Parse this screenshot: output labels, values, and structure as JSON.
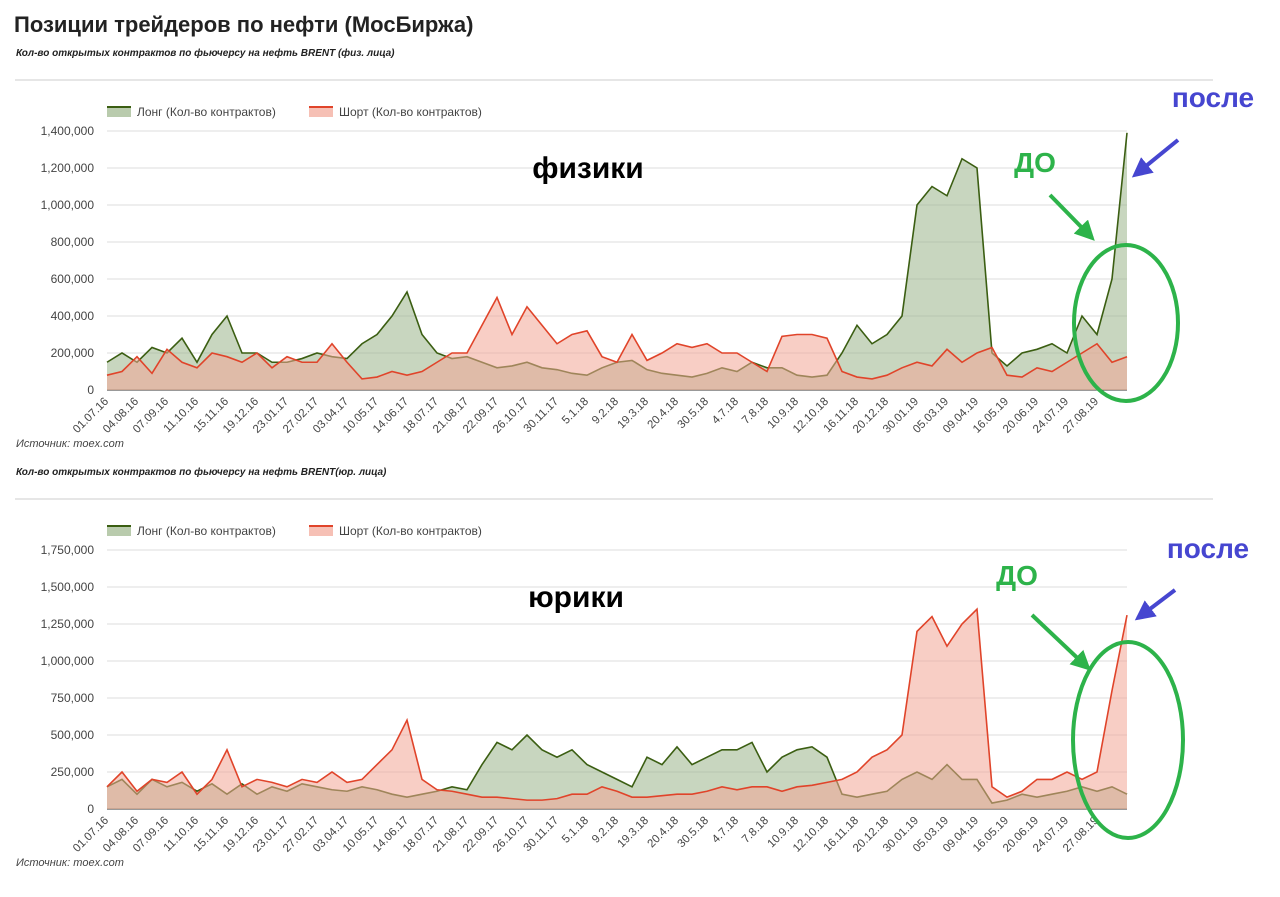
{
  "title": "Позиции трейдеров по нефти (МосБиржа)",
  "chart_data": [
    {
      "type": "area",
      "subtitle": "Кол-во открытых контрактов по фьючерсу на нефть BRENT (физ. лица)",
      "source": "Источник: moex.com",
      "annotations": [
        "физики",
        "ДО",
        "после"
      ],
      "categories": [
        "01.07.16",
        null,
        "04.08.16",
        null,
        "07.09.16",
        null,
        "11.10.16",
        null,
        "15.11.16",
        null,
        "19.12.16",
        null,
        "23.01.17",
        null,
        "27.02.17",
        null,
        "03.04.17",
        null,
        "10.05.17",
        null,
        "14.06.17",
        null,
        "18.07.17",
        null,
        "21.08.17",
        null,
        "22.09.17",
        null,
        "26.10.17",
        null,
        "30.11.17",
        null,
        "5.1.18",
        null,
        "9.2.18",
        null,
        "19.3.18",
        null,
        "20.4.18",
        null,
        "30.5.18",
        null,
        "4.7.18",
        null,
        "7.8.18",
        null,
        "10.9.18",
        null,
        "12.10.18",
        null,
        "16.11.18",
        null,
        "20.12.18",
        null,
        "30.01.19",
        null,
        "05.03.19",
        null,
        "09.04.19",
        null,
        "16.05.19",
        null,
        "20.06.19",
        null,
        "24.07.19",
        null,
        "27.08.19",
        null,
        null
      ],
      "series": [
        {
          "name": "Лонг (Кол-во контрактов)",
          "color": "#3b5e12",
          "fill": "#9bb58a",
          "values": [
            150000,
            200000,
            150000,
            230000,
            200000,
            280000,
            150000,
            300000,
            400000,
            200000,
            200000,
            150000,
            150000,
            170000,
            200000,
            180000,
            170000,
            250000,
            300000,
            400000,
            530000,
            300000,
            200000,
            170000,
            180000,
            150000,
            120000,
            130000,
            150000,
            120000,
            110000,
            90000,
            80000,
            120000,
            150000,
            160000,
            110000,
            90000,
            80000,
            70000,
            90000,
            120000,
            100000,
            150000,
            120000,
            120000,
            80000,
            70000,
            80000,
            200000,
            350000,
            250000,
            300000,
            400000,
            1000000,
            1100000,
            1050000,
            1250000,
            1200000,
            200000,
            130000,
            200000,
            220000,
            250000,
            200000,
            400000,
            300000,
            600000,
            1390000
          ]
        },
        {
          "name": "Шорт (Кол-во контрактов)",
          "color": "#e0442a",
          "fill": "#f2a595",
          "values": [
            80000,
            100000,
            180000,
            90000,
            220000,
            150000,
            120000,
            200000,
            180000,
            150000,
            200000,
            120000,
            180000,
            150000,
            150000,
            250000,
            150000,
            60000,
            70000,
            100000,
            80000,
            100000,
            150000,
            200000,
            200000,
            350000,
            500000,
            300000,
            450000,
            350000,
            250000,
            300000,
            320000,
            180000,
            150000,
            300000,
            160000,
            200000,
            250000,
            230000,
            250000,
            200000,
            200000,
            150000,
            100000,
            290000,
            300000,
            300000,
            280000,
            100000,
            70000,
            60000,
            80000,
            120000,
            150000,
            130000,
            220000,
            150000,
            200000,
            230000,
            80000,
            70000,
            120000,
            100000,
            150000,
            200000,
            250000,
            150000,
            180000
          ]
        }
      ],
      "ylim": [
        0,
        1400000
      ],
      "yticks": [
        0,
        {
          "value": 200000,
          "label": "200,000"
        },
        {
          "value": 400000,
          "label": "400,000"
        },
        {
          "value": 600000,
          "label": "600,000"
        },
        {
          "value": 800000,
          "label": "800,000"
        },
        {
          "value": 1000000,
          "label": "1,000,000"
        },
        {
          "value": 1200000,
          "label": "1,200,000"
        },
        {
          "value": 1400000,
          "label": "1,400,000"
        }
      ],
      "grid": true
    },
    {
      "type": "area",
      "subtitle": "Кол-во открытых контрактов по фьючерсу на нефть BRENT(юр. лица)",
      "source": "Источник: moex.com",
      "annotations": [
        "юрики",
        "ДО",
        "после"
      ],
      "categories": [
        "01.07.16",
        null,
        "04.08.16",
        null,
        "07.09.16",
        null,
        "11.10.16",
        null,
        "15.11.16",
        null,
        "19.12.16",
        null,
        "23.01.17",
        null,
        "27.02.17",
        null,
        "03.04.17",
        null,
        "10.05.17",
        null,
        "14.06.17",
        null,
        "18.07.17",
        null,
        "21.08.17",
        null,
        "22.09.17",
        null,
        "26.10.17",
        null,
        "30.11.17",
        null,
        "5.1.18",
        null,
        "9.2.18",
        null,
        "19.3.18",
        null,
        "20.4.18",
        null,
        "30.5.18",
        null,
        "4.7.18",
        null,
        "7.8.18",
        null,
        "10.9.18",
        null,
        "12.10.18",
        null,
        "16.11.18",
        null,
        "20.12.18",
        null,
        "30.01.19",
        null,
        "05.03.19",
        null,
        "09.04.19",
        null,
        "16.05.19",
        null,
        "20.06.19",
        null,
        "24.07.19",
        null,
        "27.08.19",
        null,
        null
      ],
      "series": [
        {
          "name": "Лонг (Кол-во контрактов)",
          "color": "#3b5e12",
          "fill": "#9bb58a",
          "values": [
            150000,
            200000,
            100000,
            200000,
            150000,
            180000,
            120000,
            170000,
            100000,
            170000,
            100000,
            150000,
            120000,
            170000,
            150000,
            130000,
            120000,
            150000,
            130000,
            100000,
            80000,
            100000,
            120000,
            150000,
            130000,
            300000,
            450000,
            400000,
            500000,
            400000,
            350000,
            400000,
            300000,
            250000,
            200000,
            150000,
            350000,
            300000,
            420000,
            300000,
            350000,
            400000,
            400000,
            450000,
            250000,
            350000,
            400000,
            420000,
            350000,
            100000,
            80000,
            100000,
            120000,
            200000,
            250000,
            200000,
            300000,
            200000,
            200000,
            40000,
            60000,
            100000,
            80000,
            100000,
            120000,
            150000,
            120000,
            150000,
            100000
          ]
        },
        {
          "name": "Шорт (Кол-во контрактов)",
          "color": "#e0442a",
          "fill": "#f2a595",
          "values": [
            150000,
            250000,
            120000,
            200000,
            180000,
            250000,
            100000,
            200000,
            400000,
            150000,
            200000,
            180000,
            150000,
            200000,
            180000,
            250000,
            180000,
            200000,
            300000,
            400000,
            600000,
            200000,
            130000,
            120000,
            100000,
            80000,
            80000,
            70000,
            60000,
            60000,
            70000,
            100000,
            100000,
            150000,
            120000,
            80000,
            80000,
            90000,
            100000,
            100000,
            120000,
            150000,
            130000,
            150000,
            150000,
            120000,
            150000,
            160000,
            180000,
            200000,
            250000,
            350000,
            400000,
            500000,
            1200000,
            1300000,
            1100000,
            1250000,
            1350000,
            150000,
            80000,
            120000,
            200000,
            200000,
            250000,
            200000,
            250000,
            800000,
            1310000
          ]
        }
      ],
      "ylim": [
        0,
        1750000
      ],
      "yticks": [
        0,
        {
          "value": 250000,
          "label": "250,000"
        },
        {
          "value": 500000,
          "label": "500,000"
        },
        {
          "value": 750000,
          "label": "750,000"
        },
        {
          "value": 1000000,
          "label": "1,000,000"
        },
        {
          "value": 1250000,
          "label": "1,250,000"
        },
        {
          "value": 1500000,
          "label": "1,500,000"
        },
        {
          "value": 1750000,
          "label": "1,750,000"
        }
      ],
      "grid": true
    }
  ]
}
